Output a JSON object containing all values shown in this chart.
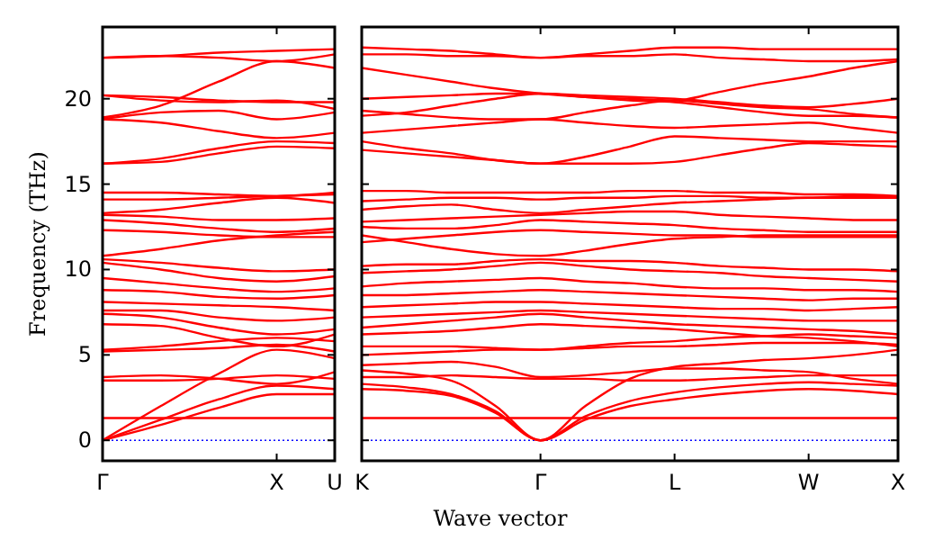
{
  "chart_data": [
    {
      "type": "line",
      "ylabel": "Frequency (THz)",
      "categories": [
        "Γ",
        null,
        null,
        "X",
        "U"
      ],
      "ylim": [
        -1.2,
        24.2
      ],
      "yticks": [
        0,
        5,
        10,
        15,
        20
      ],
      "ref_lines": [
        {
          "axis": "y",
          "value": 0,
          "color": "#0000ff",
          "line_style": "dotted"
        }
      ],
      "series": [
        {
          "color": "#ff0000",
          "values": [
            0,
            0.9,
            1.9,
            2.7,
            2.7
          ]
        },
        {
          "color": "#ff0000",
          "values": [
            0,
            1.2,
            2.4,
            3.2,
            3.0
          ]
        },
        {
          "color": "#ff0000",
          "values": [
            0,
            2.0,
            3.9,
            5.3,
            4.8
          ]
        },
        {
          "color": "#ff0000",
          "values": [
            1.3,
            1.3,
            1.3,
            1.3,
            1.3
          ]
        },
        {
          "color": "#ff0000",
          "values": [
            3.5,
            3.5,
            3.6,
            3.8,
            3.6
          ]
        },
        {
          "color": "#ff0000",
          "values": [
            3.7,
            3.8,
            3.6,
            3.3,
            4.0
          ]
        },
        {
          "color": "#ff0000",
          "values": [
            5.2,
            5.3,
            5.4,
            5.6,
            5.2
          ]
        },
        {
          "color": "#ff0000",
          "values": [
            5.3,
            5.5,
            5.8,
            6.0,
            5.8
          ]
        },
        {
          "color": "#ff0000",
          "values": [
            6.8,
            6.7,
            6.0,
            5.5,
            6.2
          ]
        },
        {
          "color": "#ff0000",
          "values": [
            7.4,
            7.2,
            6.6,
            6.2,
            6.5
          ]
        },
        {
          "color": "#ff0000",
          "values": [
            7.6,
            7.6,
            7.2,
            7.0,
            7.2
          ]
        },
        {
          "color": "#ff0000",
          "values": [
            8.1,
            8.0,
            7.9,
            7.8,
            7.6
          ]
        },
        {
          "color": "#ff0000",
          "values": [
            8.8,
            8.7,
            8.4,
            8.3,
            8.5
          ]
        },
        {
          "color": "#ff0000",
          "values": [
            9.5,
            9.2,
            8.9,
            8.7,
            8.9
          ]
        },
        {
          "color": "#ff0000",
          "values": [
            10.4,
            10.0,
            9.5,
            9.3,
            9.6
          ]
        },
        {
          "color": "#ff0000",
          "values": [
            10.6,
            10.4,
            10.1,
            9.9,
            10.0
          ]
        },
        {
          "color": "#ff0000",
          "values": [
            10.8,
            11.2,
            11.7,
            12.0,
            12.2
          ]
        },
        {
          "color": "#ff0000",
          "values": [
            12.3,
            12.2,
            12.0,
            11.9,
            11.9
          ]
        },
        {
          "color": "#ff0000",
          "values": [
            12.9,
            12.7,
            12.4,
            12.2,
            12.4
          ]
        },
        {
          "color": "#ff0000",
          "values": [
            13.2,
            13.1,
            12.9,
            12.9,
            13.0
          ]
        },
        {
          "color": "#ff0000",
          "values": [
            13.3,
            13.5,
            13.9,
            14.2,
            13.9
          ]
        },
        {
          "color": "#ff0000",
          "values": [
            14.1,
            14.1,
            14.2,
            14.3,
            14.4
          ]
        },
        {
          "color": "#ff0000",
          "values": [
            14.5,
            14.5,
            14.4,
            14.3,
            14.5
          ]
        },
        {
          "color": "#ff0000",
          "values": [
            16.2,
            16.3,
            16.8,
            17.2,
            17.1
          ]
        },
        {
          "color": "#ff0000",
          "values": [
            16.2,
            16.5,
            17.1,
            17.5,
            17.4
          ]
        },
        {
          "color": "#ff0000",
          "values": [
            18.8,
            18.6,
            18.1,
            17.7,
            18.0
          ]
        },
        {
          "color": "#ff0000",
          "values": [
            18.8,
            19.2,
            19.3,
            18.8,
            19.2
          ]
        },
        {
          "color": "#ff0000",
          "values": [
            20.2,
            20.1,
            19.9,
            19.8,
            19.8
          ]
        },
        {
          "color": "#ff0000",
          "values": [
            20.2,
            19.9,
            19.8,
            19.9,
            19.4
          ]
        },
        {
          "color": "#ff0000",
          "values": [
            22.4,
            22.5,
            22.4,
            22.2,
            22.6
          ]
        },
        {
          "color": "#ff0000",
          "values": [
            18.9,
            19.6,
            21.0,
            22.2,
            21.8
          ]
        },
        {
          "color": "#ff0000",
          "values": [
            22.4,
            22.5,
            22.7,
            22.8,
            22.9
          ]
        }
      ]
    },
    {
      "type": "line",
      "xlabel": "Wave vector",
      "tick_labels": "x",
      "categories": [
        "K",
        null,
        null,
        null,
        "Γ",
        null,
        null,
        "L",
        null,
        null,
        "W",
        null,
        "X"
      ],
      "ylim": [
        -1.2,
        24.2
      ],
      "yticks": [
        0,
        5,
        10,
        15,
        20
      ],
      "ref_lines": [
        {
          "axis": "y",
          "value": 0,
          "color": "#0000ff",
          "line_style": "dotted"
        }
      ],
      "series": [
        {
          "color": "#ff0000",
          "values": [
            3.0,
            2.9,
            2.6,
            1.6,
            0,
            1.2,
            2.0,
            2.4,
            2.7,
            2.9,
            3.0,
            2.9,
            2.7
          ]
        },
        {
          "color": "#ff0000",
          "values": [
            3.3,
            3.1,
            2.7,
            1.7,
            0,
            1.4,
            2.3,
            2.8,
            3.1,
            3.3,
            3.4,
            3.3,
            3.2
          ]
        },
        {
          "color": "#ff0000",
          "values": [
            4.1,
            3.9,
            3.5,
            2.0,
            0,
            2.0,
            3.6,
            4.3,
            4.5,
            4.7,
            4.8,
            5.0,
            5.3
          ]
        },
        {
          "color": "#ff0000",
          "values": [
            1.3,
            1.3,
            1.3,
            1.3,
            1.3,
            1.3,
            1.3,
            1.3,
            1.3,
            1.3,
            1.3,
            1.3,
            1.3
          ]
        },
        {
          "color": "#ff0000",
          "values": [
            3.7,
            3.7,
            3.8,
            3.7,
            3.6,
            3.6,
            3.5,
            3.5,
            3.6,
            3.7,
            3.8,
            3.8,
            3.8
          ]
        },
        {
          "color": "#ff0000",
          "values": [
            4.4,
            4.5,
            4.6,
            4.3,
            3.7,
            3.8,
            4.0,
            4.2,
            4.2,
            4.1,
            4.0,
            3.6,
            3.3
          ]
        },
        {
          "color": "#ff0000",
          "values": [
            5.0,
            5.1,
            5.2,
            5.3,
            5.3,
            5.4,
            5.5,
            5.5,
            5.6,
            5.7,
            5.7,
            5.7,
            5.6
          ]
        },
        {
          "color": "#ff0000",
          "values": [
            5.5,
            5.5,
            5.5,
            5.4,
            5.3,
            5.5,
            5.7,
            5.8,
            6.0,
            6.1,
            6.2,
            6.1,
            6.0
          ]
        },
        {
          "color": "#ff0000",
          "values": [
            6.2,
            6.3,
            6.4,
            6.6,
            6.8,
            6.7,
            6.6,
            6.5,
            6.3,
            6.1,
            6.0,
            5.8,
            5.5
          ]
        },
        {
          "color": "#ff0000",
          "values": [
            6.6,
            6.8,
            7.0,
            7.2,
            7.4,
            7.2,
            7.0,
            6.8,
            6.7,
            6.6,
            6.5,
            6.4,
            6.2
          ]
        },
        {
          "color": "#ff0000",
          "values": [
            7.2,
            7.3,
            7.4,
            7.5,
            7.6,
            7.5,
            7.4,
            7.3,
            7.2,
            7.1,
            7.0,
            7.0,
            7.0
          ]
        },
        {
          "color": "#ff0000",
          "values": [
            7.8,
            7.9,
            8.0,
            8.1,
            8.1,
            8.0,
            7.9,
            7.8,
            7.7,
            7.7,
            7.6,
            7.7,
            7.8
          ]
        },
        {
          "color": "#ff0000",
          "values": [
            8.5,
            8.5,
            8.6,
            8.7,
            8.8,
            8.7,
            8.6,
            8.5,
            8.4,
            8.3,
            8.2,
            8.3,
            8.3
          ]
        },
        {
          "color": "#ff0000",
          "values": [
            9.0,
            9.2,
            9.3,
            9.4,
            9.5,
            9.3,
            9.2,
            9.0,
            8.9,
            8.9,
            8.8,
            8.8,
            8.7
          ]
        },
        {
          "color": "#ff0000",
          "values": [
            9.8,
            9.9,
            10.0,
            10.2,
            10.4,
            10.2,
            10.0,
            9.9,
            9.8,
            9.6,
            9.5,
            9.4,
            9.3
          ]
        },
        {
          "color": "#ff0000",
          "values": [
            10.2,
            10.3,
            10.3,
            10.5,
            10.6,
            10.5,
            10.5,
            10.4,
            10.2,
            10.1,
            10.0,
            10.0,
            9.9
          ]
        },
        {
          "color": "#ff0000",
          "values": [
            12.0,
            11.6,
            11.2,
            10.9,
            10.8,
            11.1,
            11.5,
            11.8,
            11.9,
            12.0,
            12.0,
            12.0,
            12.0
          ]
        },
        {
          "color": "#ff0000",
          "values": [
            11.6,
            11.8,
            12.0,
            12.2,
            12.3,
            12.2,
            12.1,
            12.0,
            12.0,
            11.9,
            11.9,
            11.9,
            11.9
          ]
        },
        {
          "color": "#ff0000",
          "values": [
            12.5,
            12.4,
            12.4,
            12.6,
            12.9,
            12.8,
            12.7,
            12.6,
            12.4,
            12.3,
            12.2,
            12.2,
            12.2
          ]
        },
        {
          "color": "#ff0000",
          "values": [
            12.8,
            12.9,
            13.0,
            13.1,
            13.2,
            13.3,
            13.4,
            13.4,
            13.2,
            13.1,
            13.0,
            12.9,
            12.9
          ]
        },
        {
          "color": "#ff0000",
          "values": [
            13.5,
            13.7,
            13.8,
            13.5,
            13.3,
            13.5,
            13.7,
            13.9,
            14.0,
            14.1,
            14.2,
            14.2,
            14.2
          ]
        },
        {
          "color": "#ff0000",
          "values": [
            14.0,
            14.1,
            14.2,
            14.2,
            14.1,
            14.2,
            14.2,
            14.3,
            14.3,
            14.2,
            14.2,
            14.3,
            14.3
          ]
        },
        {
          "color": "#ff0000",
          "values": [
            14.6,
            14.6,
            14.5,
            14.5,
            14.5,
            14.5,
            14.6,
            14.6,
            14.5,
            14.5,
            14.4,
            14.4,
            14.3
          ]
        },
        {
          "color": "#ff0000",
          "values": [
            17.0,
            16.8,
            16.6,
            16.4,
            16.2,
            16.2,
            16.2,
            16.3,
            16.7,
            17.1,
            17.4,
            17.3,
            17.2
          ]
        },
        {
          "color": "#ff0000",
          "values": [
            17.5,
            17.1,
            16.8,
            16.4,
            16.2,
            16.6,
            17.2,
            17.8,
            17.7,
            17.6,
            17.5,
            17.5,
            17.5
          ]
        },
        {
          "color": "#ff0000",
          "values": [
            18.0,
            18.2,
            18.4,
            18.6,
            18.8,
            18.6,
            18.4,
            18.3,
            18.4,
            18.5,
            18.6,
            18.3,
            18.0
          ]
        },
        {
          "color": "#ff0000",
          "values": [
            19.3,
            19.1,
            18.9,
            18.8,
            18.8,
            19.2,
            19.6,
            19.9,
            19.7,
            19.5,
            19.4,
            19.1,
            18.9
          ]
        },
        {
          "color": "#ff0000",
          "values": [
            19.0,
            19.2,
            19.6,
            20.0,
            20.3,
            20.1,
            19.9,
            19.8,
            19.5,
            19.2,
            19.0,
            19.0,
            18.9
          ]
        },
        {
          "color": "#ff0000",
          "values": [
            20.0,
            20.1,
            20.2,
            20.3,
            20.3,
            20.2,
            20.1,
            20.0,
            19.8,
            19.6,
            19.5,
            19.7,
            20.0
          ]
        },
        {
          "color": "#ff0000",
          "values": [
            21.8,
            21.4,
            21.0,
            20.6,
            20.3,
            20.1,
            20.0,
            19.9,
            20.4,
            20.9,
            21.3,
            21.8,
            22.2
          ]
        },
        {
          "color": "#ff0000",
          "values": [
            22.6,
            22.6,
            22.5,
            22.5,
            22.4,
            22.5,
            22.5,
            22.6,
            22.4,
            22.3,
            22.2,
            22.2,
            22.3
          ]
        },
        {
          "color": "#ff0000",
          "values": [
            23.0,
            22.9,
            22.8,
            22.6,
            22.4,
            22.6,
            22.8,
            23.0,
            23.0,
            22.9,
            22.9,
            22.9,
            22.9
          ]
        }
      ]
    }
  ]
}
